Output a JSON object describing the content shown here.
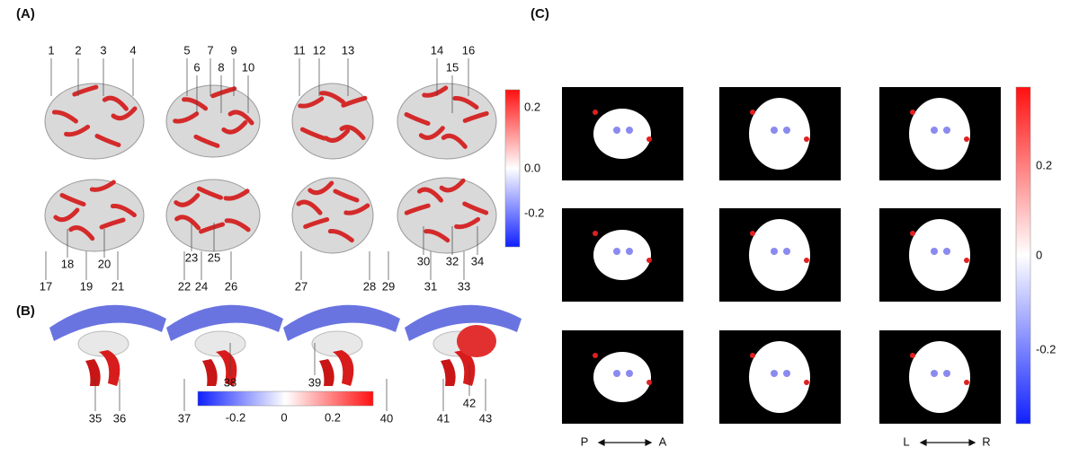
{
  "panels": [
    {
      "label": "(A)",
      "region_numbers": [
        "1",
        "2",
        "3",
        "4",
        "5",
        "6",
        "7",
        "8",
        "9",
        "10",
        "11",
        "12",
        "13",
        "14",
        "15",
        "16",
        "17",
        "18",
        "19",
        "20",
        "21",
        "22",
        "23",
        "24",
        "25",
        "26",
        "27",
        "28",
        "29",
        "30",
        "31",
        "32",
        "33",
        "34"
      ],
      "colorbar_ticks": [
        "0.2",
        "0.0",
        "-0.2"
      ]
    },
    {
      "label": "(B)",
      "region_numbers": [
        "35",
        "36",
        "37",
        "38",
        "39",
        "40",
        "41",
        "42",
        "43"
      ],
      "colorbar_ticks": [
        "-0.2",
        "0",
        "0.2"
      ]
    },
    {
      "label": "(C)",
      "colorbar_ticks": [
        "0.2",
        "0",
        "-0.2"
      ],
      "direction_labels": [
        "P",
        "A",
        "L",
        "R"
      ]
    }
  ]
}
